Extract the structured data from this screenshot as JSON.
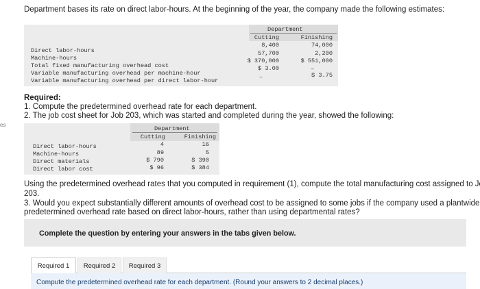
{
  "intro": "Department bases its rate on direct labor-hours. At the beginning of the year, the company made the following estimates:",
  "edge_tag": "es",
  "estimates": {
    "department_header": "Department",
    "col_cutting": "Cutting",
    "col_finishing": "Finishing",
    "rows": [
      {
        "label": "Direct labor-hours",
        "cutting": "8,400",
        "finishing": "74,000"
      },
      {
        "label": "Machine-hours",
        "cutting": "57,700",
        "finishing": "2,200"
      },
      {
        "label": "Total fixed manufacturing overhead cost",
        "cutting": "$ 370,000",
        "finishing": "$ 551,000"
      },
      {
        "label": "Variable manufacturing overhead per machine-hour",
        "cutting": "$ 3.00",
        "finishing": "–"
      },
      {
        "label": "Variable manufacturing overhead per direct labor-hour",
        "cutting": "–",
        "finishing": "$ 3.75"
      }
    ]
  },
  "required": {
    "heading": "Required:",
    "item1": "1. Compute the predetermined overhead rate for each department.",
    "item2": "2. The job cost sheet for Job 203, which was started and completed during the year, showed the following:"
  },
  "job": {
    "department_header": "Department",
    "col_cutting": "Cutting",
    "col_finishing": "Finishing",
    "rows": [
      {
        "label": "Direct labor-hours",
        "cutting": "4",
        "finishing": "16"
      },
      {
        "label": "Machine-hours",
        "cutting": "89",
        "finishing": "5"
      },
      {
        "label": "Direct materials",
        "cutting": "$ 790",
        "finishing": "$ 390"
      },
      {
        "label": "Direct labor cost",
        "cutting": "$ 96",
        "finishing": "$ 384"
      }
    ]
  },
  "paragraph": {
    "line1": "Using the predetermined overhead rates that you computed in requirement (1), compute the total manufacturing cost assigned to Jo",
    "line2": "203.",
    "line3": "3. Would you expect substantially different amounts of overhead cost to be assigned to some jobs if the company used a plantwide",
    "line4": "predetermined overhead rate based on direct labor-hours, rather than using departmental rates?"
  },
  "instruction": "Complete the question by entering your answers in the tabs given below.",
  "tabs": [
    "Required 1",
    "Required 2",
    "Required 3"
  ],
  "bottom_text": "Compute the predetermined overhead rate for each department. (Round your answers to 2 decimal places.)"
}
